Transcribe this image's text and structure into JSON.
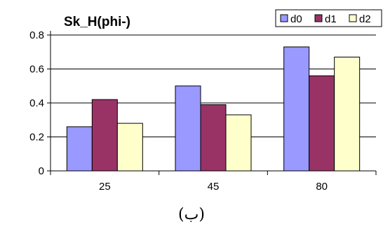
{
  "chart_data": {
    "type": "bar",
    "title": "Sk_H(phi-)",
    "categories": [
      "25",
      "45",
      "80"
    ],
    "series": [
      {
        "name": "d0",
        "values": [
          0.26,
          0.5,
          0.73
        ],
        "color": "#9999ff"
      },
      {
        "name": "d1",
        "values": [
          0.42,
          0.39,
          0.56
        ],
        "color": "#993366"
      },
      {
        "name": "d2",
        "values": [
          0.28,
          0.33,
          0.67
        ],
        "color": "#ffffcc"
      }
    ],
    "ylim": [
      0,
      0.8
    ],
    "yticks": [
      "0",
      "0.2",
      "0.4",
      "0.6",
      "0.8"
    ],
    "xlabel": "",
    "ylabel": "",
    "grid": true,
    "legend_position": "top-right"
  },
  "caption": "(ب)"
}
